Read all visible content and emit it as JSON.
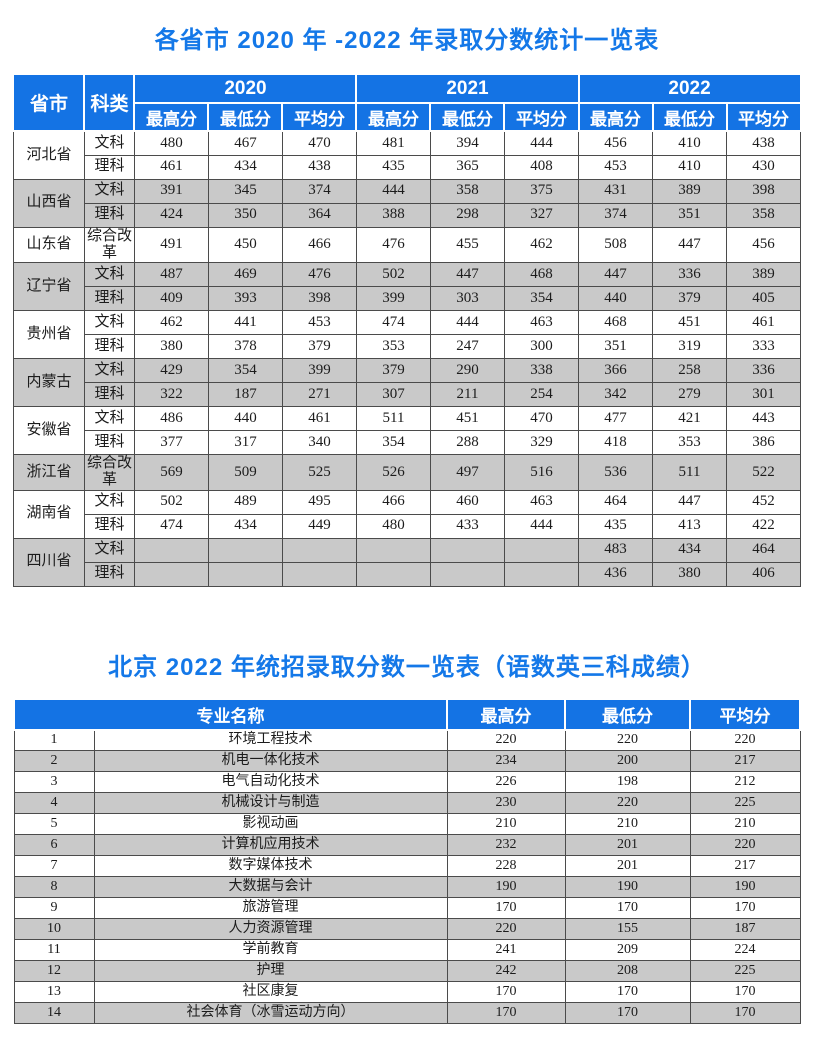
{
  "colors": {
    "header_blue": "#1473e4",
    "title_blue": "#1478e8",
    "row_gray": "#c9c9c9",
    "border": "#4b4b4b",
    "text": "#1c1c1c"
  },
  "table1": {
    "title": "各省市 2020 年 -2022 年录取分数统计一览表",
    "header": {
      "province": "省市",
      "category": "科类",
      "years": [
        "2020",
        "2021",
        "2022"
      ],
      "sub": [
        "最高分",
        "最低分",
        "平均分"
      ]
    },
    "groups": [
      {
        "province": "河北省",
        "shaded": false,
        "rows": [
          {
            "category": "文科",
            "scores": [
              "480",
              "467",
              "470",
              "481",
              "394",
              "444",
              "456",
              "410",
              "438"
            ]
          },
          {
            "category": "理科",
            "scores": [
              "461",
              "434",
              "438",
              "435",
              "365",
              "408",
              "453",
              "410",
              "430"
            ]
          }
        ]
      },
      {
        "province": "山西省",
        "shaded": true,
        "rows": [
          {
            "category": "文科",
            "scores": [
              "391",
              "345",
              "374",
              "444",
              "358",
              "375",
              "431",
              "389",
              "398"
            ]
          },
          {
            "category": "理科",
            "scores": [
              "424",
              "350",
              "364",
              "388",
              "298",
              "327",
              "374",
              "351",
              "358"
            ]
          }
        ]
      },
      {
        "province": "山东省",
        "shaded": false,
        "rows": [
          {
            "category": "综合改革",
            "tall": true,
            "scores": [
              "491",
              "450",
              "466",
              "476",
              "455",
              "462",
              "508",
              "447",
              "456"
            ]
          }
        ]
      },
      {
        "province": "辽宁省",
        "shaded": true,
        "rows": [
          {
            "category": "文科",
            "scores": [
              "487",
              "469",
              "476",
              "502",
              "447",
              "468",
              "447",
              "336",
              "389"
            ]
          },
          {
            "category": "理科",
            "scores": [
              "409",
              "393",
              "398",
              "399",
              "303",
              "354",
              "440",
              "379",
              "405"
            ]
          }
        ]
      },
      {
        "province": "贵州省",
        "shaded": false,
        "rows": [
          {
            "category": "文科",
            "scores": [
              "462",
              "441",
              "453",
              "474",
              "444",
              "463",
              "468",
              "451",
              "461"
            ]
          },
          {
            "category": "理科",
            "scores": [
              "380",
              "378",
              "379",
              "353",
              "247",
              "300",
              "351",
              "319",
              "333"
            ]
          }
        ]
      },
      {
        "province": "内蒙古",
        "shaded": true,
        "rows": [
          {
            "category": "文科",
            "scores": [
              "429",
              "354",
              "399",
              "379",
              "290",
              "338",
              "366",
              "258",
              "336"
            ]
          },
          {
            "category": "理科",
            "scores": [
              "322",
              "187",
              "271",
              "307",
              "211",
              "254",
              "342",
              "279",
              "301"
            ]
          }
        ]
      },
      {
        "province": "安徽省",
        "shaded": false,
        "rows": [
          {
            "category": "文科",
            "scores": [
              "486",
              "440",
              "461",
              "511",
              "451",
              "470",
              "477",
              "421",
              "443"
            ]
          },
          {
            "category": "理科",
            "scores": [
              "377",
              "317",
              "340",
              "354",
              "288",
              "329",
              "418",
              "353",
              "386"
            ]
          }
        ]
      },
      {
        "province": "浙江省",
        "shaded": true,
        "rows": [
          {
            "category": "综合改革",
            "tall": true,
            "scores": [
              "569",
              "509",
              "525",
              "526",
              "497",
              "516",
              "536",
              "511",
              "522"
            ]
          }
        ]
      },
      {
        "province": "湖南省",
        "shaded": false,
        "rows": [
          {
            "category": "文科",
            "scores": [
              "502",
              "489",
              "495",
              "466",
              "460",
              "463",
              "464",
              "447",
              "452"
            ]
          },
          {
            "category": "理科",
            "scores": [
              "474",
              "434",
              "449",
              "480",
              "433",
              "444",
              "435",
              "413",
              "422"
            ]
          }
        ]
      },
      {
        "province": "四川省",
        "shaded": true,
        "rows": [
          {
            "category": "文科",
            "scores": [
              "",
              "",
              "",
              "",
              "",
              "",
              "483",
              "434",
              "464"
            ]
          },
          {
            "category": "理科",
            "scores": [
              "",
              "",
              "",
              "",
              "",
              "",
              "436",
              "380",
              "406"
            ]
          }
        ]
      }
    ]
  },
  "table2": {
    "title": "北京 2022 年统招录取分数一览表（语数英三科成绩）",
    "header": {
      "major": "专业名称",
      "max": "最高分",
      "min": "最低分",
      "avg": "平均分"
    },
    "rows": [
      {
        "no": "1",
        "major": "环境工程技术",
        "max": "220",
        "min": "220",
        "avg": "220"
      },
      {
        "no": "2",
        "major": "机电一体化技术",
        "max": "234",
        "min": "200",
        "avg": "217"
      },
      {
        "no": "3",
        "major": "电气自动化技术",
        "max": "226",
        "min": "198",
        "avg": "212"
      },
      {
        "no": "4",
        "major": "机械设计与制造",
        "max": "230",
        "min": "220",
        "avg": "225"
      },
      {
        "no": "5",
        "major": "影视动画",
        "max": "210",
        "min": "210",
        "avg": "210"
      },
      {
        "no": "6",
        "major": "计算机应用技术",
        "max": "232",
        "min": "201",
        "avg": "220"
      },
      {
        "no": "7",
        "major": "数字媒体技术",
        "max": "228",
        "min": "201",
        "avg": "217"
      },
      {
        "no": "8",
        "major": "大数据与会计",
        "max": "190",
        "min": "190",
        "avg": "190"
      },
      {
        "no": "9",
        "major": "旅游管理",
        "max": "170",
        "min": "170",
        "avg": "170"
      },
      {
        "no": "10",
        "major": "人力资源管理",
        "max": "220",
        "min": "155",
        "avg": "187"
      },
      {
        "no": "11",
        "major": "学前教育",
        "max": "241",
        "min": "209",
        "avg": "224"
      },
      {
        "no": "12",
        "major": "护理",
        "max": "242",
        "min": "208",
        "avg": "225"
      },
      {
        "no": "13",
        "major": "社区康复",
        "max": "170",
        "min": "170",
        "avg": "170"
      },
      {
        "no": "14",
        "major": "社会体育（冰雪运动方向）",
        "max": "170",
        "min": "170",
        "avg": "170"
      }
    ]
  }
}
